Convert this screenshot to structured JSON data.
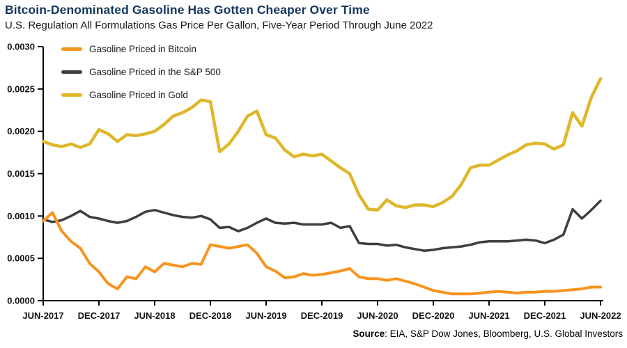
{
  "header": {
    "title": "Bitcoin-Denominated Gasoline Has Gotten Cheaper Over Time",
    "subtitle": "U.S. Regulation All Formulations Gas Price Per Gallon, Five-Year Period Through June 2022"
  },
  "source": {
    "prefix": "Source",
    "rest": ": EIA, S&P Dow Jones, Bloomberg, U.S. Global Investors"
  },
  "colors": {
    "title_navy": "#14375E",
    "axis_black": "#000000",
    "bitcoin_orange": "#F7941E",
    "sp500_dark": "#3E3E3E",
    "gold_yellow": "#DFB72B"
  },
  "chart_data": {
    "type": "line",
    "title": "Bitcoin-Denominated Gasoline Has Gotten Cheaper Over Time",
    "subtitle": "U.S. Regulation All Formulations Gas Price Per Gallon, Five-Year Period Through June 2022",
    "x_axis": {
      "tick_labels": [
        "JUN-2017",
        "DEC-2017",
        "JUN-2018",
        "DEC-2018",
        "JUN-2019",
        "DEC-2019",
        "JUN-2020",
        "DEC-2020",
        "JUN-2021",
        "DEC-2021",
        "JUN-2022"
      ],
      "tick_every_n_points": 6,
      "points_are": "monthly samples Jun-2017 through Jun-2022 (61 points)"
    },
    "y_axis": {
      "tick_labels": [
        "0.0000",
        "0.0005",
        "0.0010",
        "0.0015",
        "0.0020",
        "0.0025",
        "0.0030"
      ],
      "ylim": [
        0,
        0.003
      ]
    },
    "grid": false,
    "legend_position": "top-left inside plot",
    "series": [
      {
        "name": "Gasoline Priced in the S&P 500",
        "color_key": "sp500_dark",
        "stroke_width": 3.5,
        "values": [
          0.00096,
          0.00093,
          0.00095,
          0.001,
          0.00106,
          0.00099,
          0.00097,
          0.00094,
          0.00092,
          0.00094,
          0.00099,
          0.00105,
          0.00107,
          0.00104,
          0.00101,
          0.00099,
          0.00098,
          0.001,
          0.00096,
          0.00086,
          0.00087,
          0.00082,
          0.00086,
          0.00092,
          0.00097,
          0.00092,
          0.00091,
          0.00092,
          0.0009,
          0.0009,
          0.0009,
          0.00092,
          0.00086,
          0.00088,
          0.00068,
          0.00067,
          0.00067,
          0.00065,
          0.00066,
          0.00063,
          0.00061,
          0.00059,
          0.0006,
          0.00062,
          0.00063,
          0.00064,
          0.00066,
          0.00069,
          0.0007,
          0.0007,
          0.0007,
          0.00071,
          0.00072,
          0.00071,
          0.00068,
          0.00072,
          0.00078,
          0.00108,
          0.00097,
          0.00107,
          0.00118
        ]
      },
      {
        "name": "Gasoline Priced in Gold",
        "color_key": "gold_yellow",
        "stroke_width": 4.5,
        "values": [
          0.00188,
          0.00184,
          0.00182,
          0.00185,
          0.00181,
          0.00185,
          0.00202,
          0.00197,
          0.00188,
          0.00196,
          0.00195,
          0.00197,
          0.002,
          0.00208,
          0.00218,
          0.00222,
          0.00228,
          0.00237,
          0.00235,
          0.00176,
          0.00185,
          0.002,
          0.00218,
          0.00224,
          0.00196,
          0.00192,
          0.00178,
          0.0017,
          0.00173,
          0.00171,
          0.00173,
          0.00165,
          0.00157,
          0.0015,
          0.00125,
          0.00108,
          0.00107,
          0.00119,
          0.00112,
          0.0011,
          0.00113,
          0.00113,
          0.00111,
          0.00116,
          0.00123,
          0.00137,
          0.00157,
          0.0016,
          0.0016,
          0.00166,
          0.00172,
          0.00177,
          0.00184,
          0.00186,
          0.00185,
          0.00179,
          0.00184,
          0.00222,
          0.00206,
          0.0024,
          0.00262
        ]
      },
      {
        "name": "Gasoline Priced in Bitcoin",
        "color_key": "bitcoin_orange",
        "stroke_width": 4,
        "values": [
          0.00094,
          0.00104,
          0.00082,
          0.0007,
          0.00062,
          0.00044,
          0.00034,
          0.0002,
          0.00014,
          0.00028,
          0.00026,
          0.0004,
          0.00034,
          0.00044,
          0.00042,
          0.0004,
          0.00044,
          0.00043,
          0.00066,
          0.00064,
          0.00062,
          0.00064,
          0.00066,
          0.00056,
          0.0004,
          0.00035,
          0.00027,
          0.00028,
          0.00032,
          0.0003,
          0.00031,
          0.00033,
          0.00035,
          0.00038,
          0.00028,
          0.00026,
          0.00026,
          0.00024,
          0.00026,
          0.00023,
          0.0002,
          0.00016,
          0.00012,
          0.0001,
          8e-05,
          8e-05,
          8e-05,
          9e-05,
          0.0001,
          0.00011,
          0.0001,
          9e-05,
          0.0001,
          0.0001,
          0.00011,
          0.00011,
          0.00012,
          0.00013,
          0.00014,
          0.00016,
          0.00016
        ]
      }
    ],
    "legend_order": [
      "Gasoline Priced in Bitcoin",
      "Gasoline Priced in the S&P 500",
      "Gasoline Priced in Gold"
    ]
  }
}
